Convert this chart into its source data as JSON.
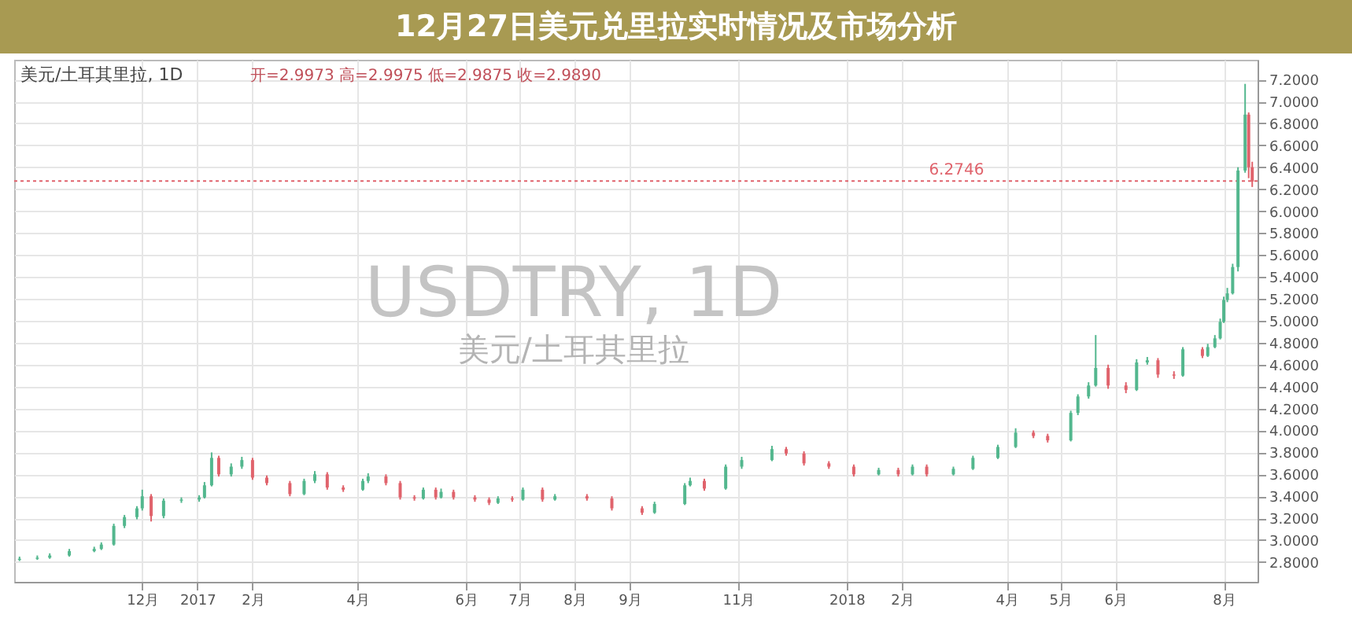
{
  "chart_data": {
    "type": "candlestick",
    "title": "12月27日美元兑里拉实时情况及市场分析",
    "annotations": [
      "美元/土耳其里拉, 1D",
      "开=2.9973 高=2.9975 低=2.9875 收=2.9890",
      "USDTRY, 1D",
      "美元/土耳其里拉"
    ],
    "xlim": [
      "2016-09-20",
      "2018-08-20"
    ],
    "xticks": [
      {
        "value": "2016-12-01",
        "label": "12月"
      },
      {
        "value": "2017-01-01",
        "label": "2017"
      },
      {
        "value": "2017-02-01",
        "label": "2月"
      },
      {
        "value": "2017-04-01",
        "label": "4月"
      },
      {
        "value": "2017-06-01",
        "label": "6月"
      },
      {
        "value": "2017-07-01",
        "label": "7月"
      },
      {
        "value": "2017-08-01",
        "label": "8月"
      },
      {
        "value": "2017-09-01",
        "label": "9月"
      },
      {
        "value": "2017-11-01",
        "label": "11月"
      },
      {
        "value": "2018-01-01",
        "label": "2018"
      },
      {
        "value": "2018-02-01",
        "label": "2月"
      },
      {
        "value": "2018-04-01",
        "label": "4月"
      },
      {
        "value": "2018-05-01",
        "label": "5月"
      },
      {
        "value": "2018-06-01",
        "label": "6月"
      },
      {
        "value": "2018-08-01",
        "label": "8月"
      }
    ],
    "ylim": [
      2.62,
      7.38
    ],
    "yticks": [
      {
        "value": 2.8,
        "label": "2.8000"
      },
      {
        "value": 3.0,
        "label": "3.0000"
      },
      {
        "value": 3.2,
        "label": "3.2000"
      },
      {
        "value": 3.4,
        "label": "3.4000"
      },
      {
        "value": 3.6,
        "label": "3.6000"
      },
      {
        "value": 3.8,
        "label": "3.8000"
      },
      {
        "value": 4.0,
        "label": "4.0000"
      },
      {
        "value": 4.2,
        "label": "4.2000"
      },
      {
        "value": 4.4,
        "label": "4.4000"
      },
      {
        "value": 4.6,
        "label": "4.6000"
      },
      {
        "value": 4.8,
        "label": "4.8000"
      },
      {
        "value": 5.0,
        "label": "5.0000"
      },
      {
        "value": 5.2,
        "label": "5.2000"
      },
      {
        "value": 5.4,
        "label": "5.4000"
      },
      {
        "value": 5.6,
        "label": "5.6000"
      },
      {
        "value": 5.8,
        "label": "5.8000"
      },
      {
        "value": 6.0,
        "label": "6.0000"
      },
      {
        "value": 6.2,
        "label": "6.2000"
      },
      {
        "value": 6.4,
        "label": "6.4000"
      },
      {
        "value": 6.6,
        "label": "6.6000"
      },
      {
        "value": 6.8,
        "label": "6.8000"
      },
      {
        "value": 7.0,
        "label": "7.0000"
      },
      {
        "value": 7.2,
        "label": "7.2000"
      }
    ],
    "grid": true,
    "ref_lines": [
      {
        "axis": "y",
        "value": 6.2746,
        "label": "6.2746",
        "color": "#e0636c",
        "line_style": "dotted"
      }
    ],
    "series": [
      {
        "color": "#53b78e",
        "x": [
          "2016-09-23",
          "2016-10-03",
          "2016-10-10",
          "2016-10-21",
          "2016-11-04",
          "2016-11-08",
          "2016-11-15",
          "2016-11-21",
          "2016-11-28",
          "2016-12-01",
          "2016-12-13",
          "2016-12-23",
          "2017-01-02",
          "2017-01-05",
          "2017-01-09",
          "2017-01-20",
          "2017-01-26",
          "2017-03-02",
          "2017-03-08",
          "2017-04-04",
          "2017-04-07",
          "2017-05-08",
          "2017-05-18",
          "2017-06-19",
          "2017-07-03",
          "2017-07-21",
          "2017-09-15",
          "2017-10-02",
          "2017-10-05",
          "2017-10-25",
          "2017-11-03",
          "2017-11-20",
          "2018-01-19",
          "2018-02-07",
          "2018-03-02",
          "2018-03-13",
          "2018-03-27",
          "2018-04-06",
          "2018-05-07",
          "2018-05-11",
          "2018-05-17",
          "2018-05-21",
          "2018-06-13",
          "2018-06-19",
          "2018-07-09",
          "2018-07-23",
          "2018-07-27",
          "2018-07-30",
          "2018-08-01",
          "2018-08-03",
          "2018-08-06",
          "2018-08-09",
          "2018-08-13"
        ],
        "ohlc": [
          [
            2.82,
            2.85,
            2.81,
            2.83
          ],
          [
            2.83,
            2.86,
            2.82,
            2.84
          ],
          [
            2.84,
            2.88,
            2.83,
            2.86
          ],
          [
            2.86,
            2.92,
            2.85,
            2.9
          ],
          [
            2.9,
            2.94,
            2.89,
            2.92
          ],
          [
            2.92,
            2.98,
            2.91,
            2.96
          ],
          [
            2.96,
            3.15,
            2.95,
            3.13
          ],
          [
            3.13,
            3.23,
            3.11,
            3.21
          ],
          [
            3.21,
            3.31,
            3.19,
            3.29
          ],
          [
            3.29,
            3.46,
            3.27,
            3.4
          ],
          [
            3.22,
            3.38,
            3.2,
            3.36
          ],
          [
            3.36,
            3.39,
            3.34,
            3.37
          ],
          [
            3.37,
            3.41,
            3.35,
            3.39
          ],
          [
            3.39,
            3.53,
            3.38,
            3.5
          ],
          [
            3.5,
            3.8,
            3.49,
            3.75
          ],
          [
            3.6,
            3.7,
            3.58,
            3.67
          ],
          [
            3.67,
            3.76,
            3.65,
            3.73
          ],
          [
            3.42,
            3.56,
            3.41,
            3.54
          ],
          [
            3.54,
            3.63,
            3.52,
            3.6
          ],
          [
            3.46,
            3.56,
            3.45,
            3.54
          ],
          [
            3.54,
            3.61,
            3.52,
            3.58
          ],
          [
            3.38,
            3.48,
            3.37,
            3.46
          ],
          [
            3.39,
            3.47,
            3.38,
            3.44
          ],
          [
            3.34,
            3.4,
            3.33,
            3.38
          ],
          [
            3.37,
            3.48,
            3.36,
            3.46
          ],
          [
            3.37,
            3.42,
            3.36,
            3.4
          ],
          [
            3.25,
            3.35,
            3.24,
            3.33
          ],
          [
            3.33,
            3.52,
            3.32,
            3.5
          ],
          [
            3.5,
            3.57,
            3.49,
            3.54
          ],
          [
            3.47,
            3.69,
            3.46,
            3.67
          ],
          [
            3.67,
            3.76,
            3.65,
            3.73
          ],
          [
            3.73,
            3.86,
            3.72,
            3.83
          ],
          [
            3.6,
            3.66,
            3.59,
            3.64
          ],
          [
            3.6,
            3.69,
            3.59,
            3.67
          ],
          [
            3.6,
            3.67,
            3.59,
            3.65
          ],
          [
            3.65,
            3.77,
            3.64,
            3.75
          ],
          [
            3.75,
            3.87,
            3.74,
            3.85
          ],
          [
            3.85,
            4.02,
            3.84,
            3.98
          ],
          [
            3.91,
            4.18,
            3.9,
            4.16
          ],
          [
            4.16,
            4.33,
            4.14,
            4.31
          ],
          [
            4.31,
            4.44,
            4.29,
            4.41
          ],
          [
            4.41,
            4.87,
            4.4,
            4.57
          ],
          [
            4.37,
            4.65,
            4.36,
            4.62
          ],
          [
            4.62,
            4.67,
            4.6,
            4.64
          ],
          [
            4.5,
            4.76,
            4.49,
            4.74
          ],
          [
            4.68,
            4.79,
            4.67,
            4.76
          ],
          [
            4.76,
            4.87,
            4.75,
            4.84
          ],
          [
            4.84,
            5.02,
            4.83,
            4.99
          ],
          [
            4.99,
            5.22,
            4.98,
            5.19
          ],
          [
            5.19,
            5.3,
            5.17,
            5.25
          ],
          [
            5.25,
            5.52,
            5.24,
            5.49
          ],
          [
            5.49,
            6.4,
            5.45,
            6.37
          ],
          [
            6.37,
            7.16,
            6.35,
            6.88
          ]
        ]
      },
      {
        "color": "#e0636c",
        "x": [
          "2016-12-06",
          "2017-01-13",
          "2017-02-01",
          "2017-02-09",
          "2017-02-22",
          "2017-03-15",
          "2017-03-24",
          "2017-04-17",
          "2017-04-25",
          "2017-05-03",
          "2017-05-15",
          "2017-05-25",
          "2017-06-06",
          "2017-06-14",
          "2017-06-27",
          "2017-07-14",
          "2017-08-08",
          "2017-08-22",
          "2017-09-08",
          "2017-10-13",
          "2017-11-28",
          "2017-12-08",
          "2017-12-22",
          "2018-01-05",
          "2018-01-30",
          "2018-02-15",
          "2018-04-16",
          "2018-04-24",
          "2018-05-28",
          "2018-06-07",
          "2018-06-25",
          "2018-07-04",
          "2018-07-20",
          "2018-08-15",
          "2018-08-17"
        ],
        "ohlc": [
          [
            3.4,
            3.42,
            3.17,
            3.22
          ],
          [
            3.75,
            3.77,
            3.58,
            3.6
          ],
          [
            3.73,
            3.75,
            3.55,
            3.57
          ],
          [
            3.57,
            3.59,
            3.5,
            3.52
          ],
          [
            3.52,
            3.54,
            3.4,
            3.42
          ],
          [
            3.6,
            3.62,
            3.46,
            3.48
          ],
          [
            3.48,
            3.5,
            3.44,
            3.46
          ],
          [
            3.58,
            3.6,
            3.5,
            3.52
          ],
          [
            3.52,
            3.54,
            3.37,
            3.39
          ],
          [
            3.39,
            3.41,
            3.36,
            3.38
          ],
          [
            3.46,
            3.48,
            3.37,
            3.39
          ],
          [
            3.44,
            3.46,
            3.37,
            3.39
          ],
          [
            3.39,
            3.41,
            3.35,
            3.37
          ],
          [
            3.37,
            3.39,
            3.32,
            3.34
          ],
          [
            3.38,
            3.4,
            3.35,
            3.37
          ],
          [
            3.46,
            3.48,
            3.35,
            3.37
          ],
          [
            3.4,
            3.42,
            3.36,
            3.38
          ],
          [
            3.38,
            3.4,
            3.27,
            3.29
          ],
          [
            3.29,
            3.31,
            3.23,
            3.25
          ],
          [
            3.54,
            3.56,
            3.45,
            3.47
          ],
          [
            3.83,
            3.85,
            3.77,
            3.79
          ],
          [
            3.79,
            3.81,
            3.68,
            3.7
          ],
          [
            3.7,
            3.72,
            3.65,
            3.67
          ],
          [
            3.67,
            3.69,
            3.58,
            3.6
          ],
          [
            3.64,
            3.66,
            3.58,
            3.6
          ],
          [
            3.67,
            3.69,
            3.58,
            3.6
          ],
          [
            3.98,
            4.0,
            3.93,
            3.95
          ],
          [
            3.95,
            3.97,
            3.89,
            3.91
          ],
          [
            4.57,
            4.6,
            4.38,
            4.41
          ],
          [
            4.41,
            4.44,
            4.34,
            4.37
          ],
          [
            4.64,
            4.66,
            4.48,
            4.51
          ],
          [
            4.51,
            4.54,
            4.47,
            4.5
          ],
          [
            4.74,
            4.76,
            4.66,
            4.68
          ],
          [
            6.88,
            6.9,
            6.3,
            6.4
          ],
          [
            6.4,
            6.45,
            6.22,
            6.27
          ]
        ]
      }
    ]
  }
}
